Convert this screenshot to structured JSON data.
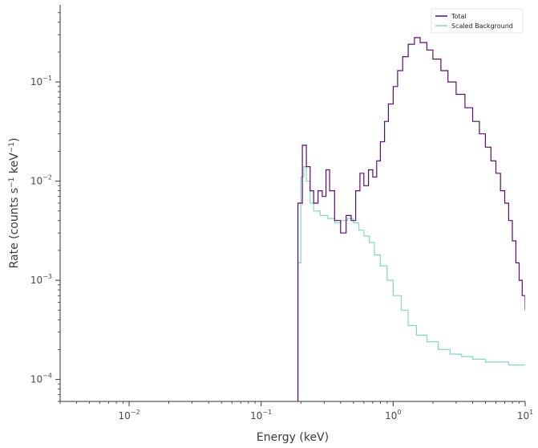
{
  "chart_data": {
    "type": "line",
    "title": "",
    "xlabel": "Energy (keV)",
    "ylabel": {
      "pre": "Rate (counts s",
      "exp1": "−1",
      "mid": " keV",
      "exp2": "−1",
      "post": ")"
    },
    "x_scale": "log",
    "y_scale": "log",
    "xlim": [
      0.003,
      10
    ],
    "ylim": [
      6e-05,
      0.6
    ],
    "x_ticks": [
      {
        "value": 0.01,
        "base": "10",
        "exp": "−2"
      },
      {
        "value": 0.1,
        "base": "10",
        "exp": "−1"
      },
      {
        "value": 1,
        "base": "10",
        "exp": "0"
      },
      {
        "value": 10,
        "base": "10",
        "exp": "1"
      }
    ],
    "y_ticks": [
      {
        "value": 0.0001,
        "base": "10",
        "exp": "−4"
      },
      {
        "value": 0.001,
        "base": "10",
        "exp": "−3"
      },
      {
        "value": 0.01,
        "base": "10",
        "exp": "−2"
      },
      {
        "value": 0.1,
        "base": "10",
        "exp": "−1"
      }
    ],
    "grid": false,
    "legend_position": "top-right",
    "series": [
      {
        "name": "Total",
        "color": "#5b0a74",
        "style": "step",
        "points": [
          [
            0.19,
            0.006
          ],
          [
            0.205,
            0.023
          ],
          [
            0.22,
            0.014
          ],
          [
            0.235,
            0.008
          ],
          [
            0.25,
            0.006
          ],
          [
            0.27,
            0.008
          ],
          [
            0.29,
            0.007
          ],
          [
            0.31,
            0.013
          ],
          [
            0.33,
            0.008
          ],
          [
            0.36,
            0.004
          ],
          [
            0.4,
            0.003
          ],
          [
            0.44,
            0.0045
          ],
          [
            0.48,
            0.004
          ],
          [
            0.52,
            0.008
          ],
          [
            0.56,
            0.012
          ],
          [
            0.6,
            0.009
          ],
          [
            0.65,
            0.013
          ],
          [
            0.7,
            0.011
          ],
          [
            0.75,
            0.016
          ],
          [
            0.8,
            0.025
          ],
          [
            0.86,
            0.04
          ],
          [
            0.92,
            0.06
          ],
          [
            1.0,
            0.09
          ],
          [
            1.08,
            0.13
          ],
          [
            1.18,
            0.18
          ],
          [
            1.3,
            0.24
          ],
          [
            1.45,
            0.28
          ],
          [
            1.6,
            0.25
          ],
          [
            1.8,
            0.21
          ],
          [
            2.0,
            0.17
          ],
          [
            2.3,
            0.13
          ],
          [
            2.6,
            0.1
          ],
          [
            3.0,
            0.075
          ],
          [
            3.5,
            0.055
          ],
          [
            4.0,
            0.04
          ],
          [
            4.5,
            0.03
          ],
          [
            5.0,
            0.022
          ],
          [
            5.5,
            0.016
          ],
          [
            6.0,
            0.012
          ],
          [
            6.5,
            0.008
          ],
          [
            7.0,
            0.006
          ],
          [
            7.5,
            0.004
          ],
          [
            8.0,
            0.0025
          ],
          [
            8.5,
            0.0015
          ],
          [
            9.0,
            0.001
          ],
          [
            9.5,
            0.0007
          ],
          [
            10.0,
            0.0005
          ]
        ]
      },
      {
        "name": "Scaled  Background",
        "color": "#86d6c2",
        "style": "step",
        "points": [
          [
            0.19,
            0.0015
          ],
          [
            0.2,
            0.011
          ],
          [
            0.21,
            0.014
          ],
          [
            0.22,
            0.01
          ],
          [
            0.235,
            0.006
          ],
          [
            0.25,
            0.005
          ],
          [
            0.28,
            0.0045
          ],
          [
            0.32,
            0.0042
          ],
          [
            0.36,
            0.0038
          ],
          [
            0.4,
            0.004
          ],
          [
            0.45,
            0.0042
          ],
          [
            0.5,
            0.0038
          ],
          [
            0.55,
            0.0032
          ],
          [
            0.6,
            0.0028
          ],
          [
            0.66,
            0.0024
          ],
          [
            0.72,
            0.0018
          ],
          [
            0.8,
            0.0014
          ],
          [
            0.9,
            0.001
          ],
          [
            1.0,
            0.0007
          ],
          [
            1.15,
            0.0005
          ],
          [
            1.3,
            0.00035
          ],
          [
            1.5,
            0.00028
          ],
          [
            1.8,
            0.00024
          ],
          [
            2.2,
            0.0002
          ],
          [
            2.7,
            0.00018
          ],
          [
            3.3,
            0.00017
          ],
          [
            4.0,
            0.00016
          ],
          [
            5.0,
            0.00015
          ],
          [
            6.0,
            0.00015
          ],
          [
            7.5,
            0.00014
          ],
          [
            10.0,
            0.00014
          ]
        ]
      }
    ]
  }
}
